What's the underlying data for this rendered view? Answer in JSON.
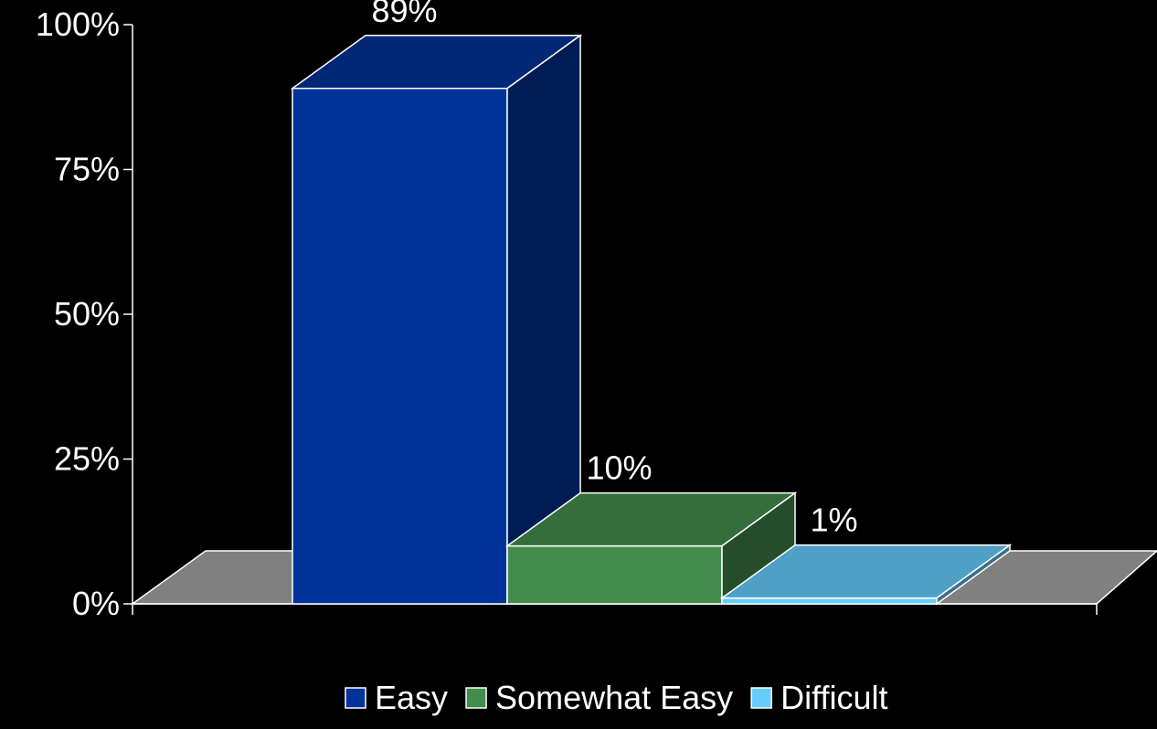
{
  "chart_data": {
    "type": "bar",
    "title": "",
    "xlabel": "",
    "ylabel": "",
    "ylim": [
      0,
      100
    ],
    "yticks": [
      "0%",
      "25%",
      "50%",
      "75%",
      "100%"
    ],
    "ytick_values": [
      0,
      25,
      50,
      75,
      100
    ],
    "style": "3d",
    "grid": false,
    "legend_position": "bottom",
    "series": [
      {
        "name": "Easy",
        "value": 89,
        "label": "89%",
        "color": "#003399"
      },
      {
        "name": "Somewhat Easy",
        "value": 10,
        "label": "10%",
        "color": "#448c4c"
      },
      {
        "name": "Difficult",
        "value": 1,
        "label": "1%",
        "color": "#66ccff"
      }
    ],
    "floor_color": "#808080",
    "axis_color": "#ffffff"
  }
}
